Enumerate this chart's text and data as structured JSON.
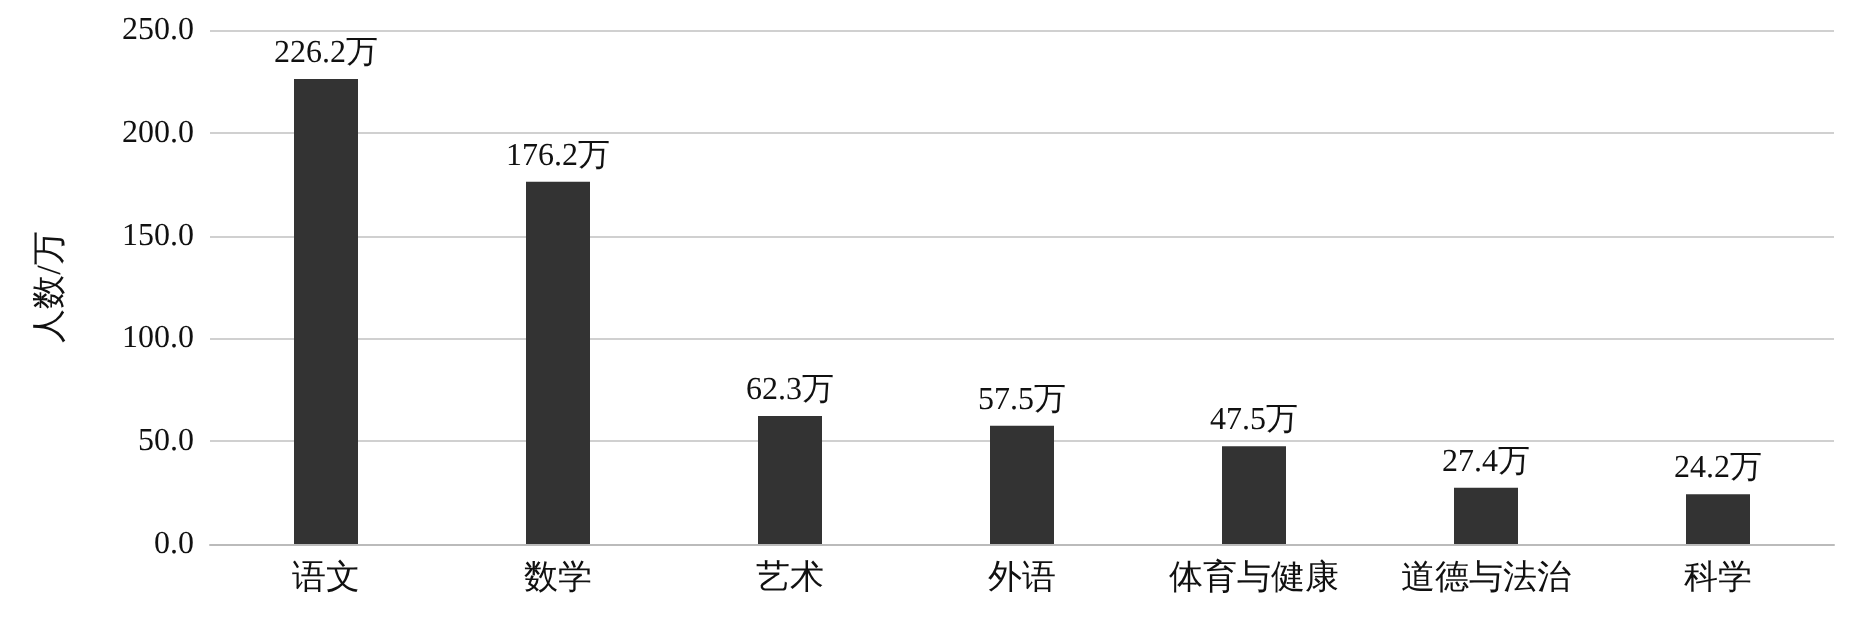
{
  "chart_data": {
    "type": "bar",
    "ylabel": "人数/万",
    "categories": [
      "语文",
      "数学",
      "艺术",
      "外语",
      "体育与健康",
      "道德与法治",
      "科学"
    ],
    "values": [
      226.2,
      176.2,
      62.3,
      57.5,
      47.5,
      27.4,
      24.2
    ],
    "value_labels": [
      "226.2万",
      "176.2万",
      "62.3万",
      "57.5万",
      "47.5万",
      "27.4万",
      "24.2万"
    ],
    "color": "#333333",
    "ylim": [
      0,
      250
    ],
    "yticks": [
      {
        "value": 0,
        "label": "0.0"
      },
      {
        "value": 50,
        "label": "50.0"
      },
      {
        "value": 100,
        "label": "100.0"
      },
      {
        "value": 150,
        "label": "150.0"
      },
      {
        "value": 200,
        "label": "200.0"
      },
      {
        "value": 250,
        "label": "250.0"
      }
    ],
    "grid": "y"
  }
}
